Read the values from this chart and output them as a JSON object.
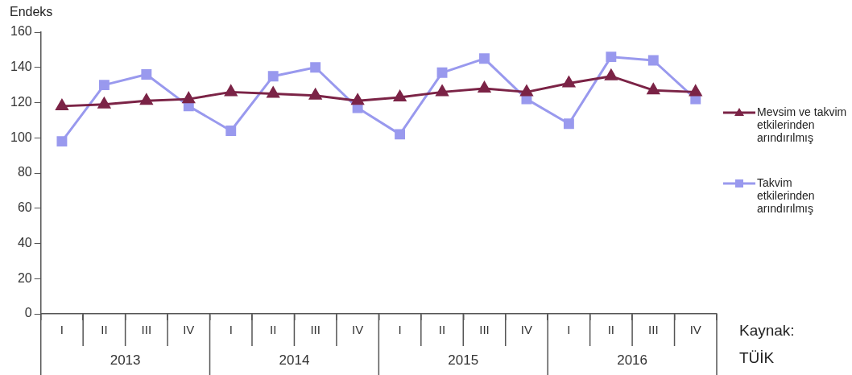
{
  "chart_data": {
    "type": "line",
    "ylabel": "Endeks",
    "categories": [
      "I",
      "II",
      "III",
      "IV",
      "I",
      "II",
      "III",
      "IV",
      "I",
      "II",
      "III",
      "IV",
      "I",
      "II",
      "III",
      "IV"
    ],
    "series": [
      {
        "name": "Mevsim ve takvim etkilerinden arındırılmış",
        "color": "#7b2346",
        "marker": "triangle",
        "values": [
          118,
          119,
          121,
          122,
          126,
          125,
          124,
          121,
          123,
          126,
          128,
          126,
          131,
          135,
          127,
          126
        ]
      },
      {
        "name": "Takvim etkilerinden arındırılmış",
        "color": "#9999ee",
        "marker": "square",
        "values": [
          98,
          130,
          136,
          118,
          104,
          135,
          140,
          117,
          102,
          137,
          145,
          122,
          108,
          146,
          144,
          122
        ]
      }
    ],
    "ylim": [
      0,
      160
    ],
    "yticks": [
      0,
      20,
      40,
      60,
      80,
      100,
      120,
      140,
      160
    ],
    "grid": false,
    "legend": "right",
    "annotations": [
      "2013",
      "2014",
      "2015",
      "2016",
      "Kaynak: TÜİK"
    ]
  }
}
